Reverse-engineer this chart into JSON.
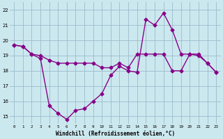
{
  "line1_x": [
    0,
    1,
    2,
    3,
    4,
    5,
    6,
    7,
    8,
    9,
    10,
    11,
    12,
    13,
    14,
    15,
    16,
    17,
    18,
    19,
    20,
    21,
    22,
    23
  ],
  "line1_y": [
    19.7,
    19.6,
    19.1,
    19.0,
    18.7,
    18.5,
    18.5,
    18.5,
    18.5,
    18.5,
    18.2,
    18.2,
    18.5,
    18.2,
    19.1,
    19.1,
    19.1,
    19.1,
    18.0,
    18.0,
    19.1,
    19.0,
    18.5,
    17.9
  ],
  "line2_x": [
    0,
    1,
    2,
    3,
    4,
    5,
    6,
    7,
    8,
    9,
    10,
    11,
    12,
    13,
    14,
    15,
    16,
    17,
    18,
    19,
    20,
    21,
    22,
    23
  ],
  "line2_y": [
    19.7,
    19.6,
    19.1,
    18.8,
    15.7,
    15.2,
    14.8,
    15.4,
    15.5,
    16.0,
    16.5,
    17.7,
    18.3,
    18.0,
    17.9,
    21.4,
    21.0,
    21.8,
    20.7,
    19.1,
    19.1,
    19.1,
    18.5,
    17.9
  ],
  "color": "#880088",
  "bgcolor": "#cce8ef",
  "grid_color": "#99bbcc",
  "xlim": [
    -0.5,
    23.5
  ],
  "ylim": [
    14.5,
    22.5
  ],
  "yticks": [
    15,
    16,
    17,
    18,
    19,
    20,
    21,
    22
  ],
  "xticks": [
    0,
    1,
    2,
    3,
    4,
    5,
    6,
    7,
    8,
    9,
    10,
    11,
    12,
    13,
    14,
    15,
    16,
    17,
    18,
    19,
    20,
    21,
    22,
    23
  ],
  "xlabel": "Windchill (Refroidissement éolien,°C)",
  "marker": "D",
  "markersize": 2.5,
  "linewidth": 1.0
}
